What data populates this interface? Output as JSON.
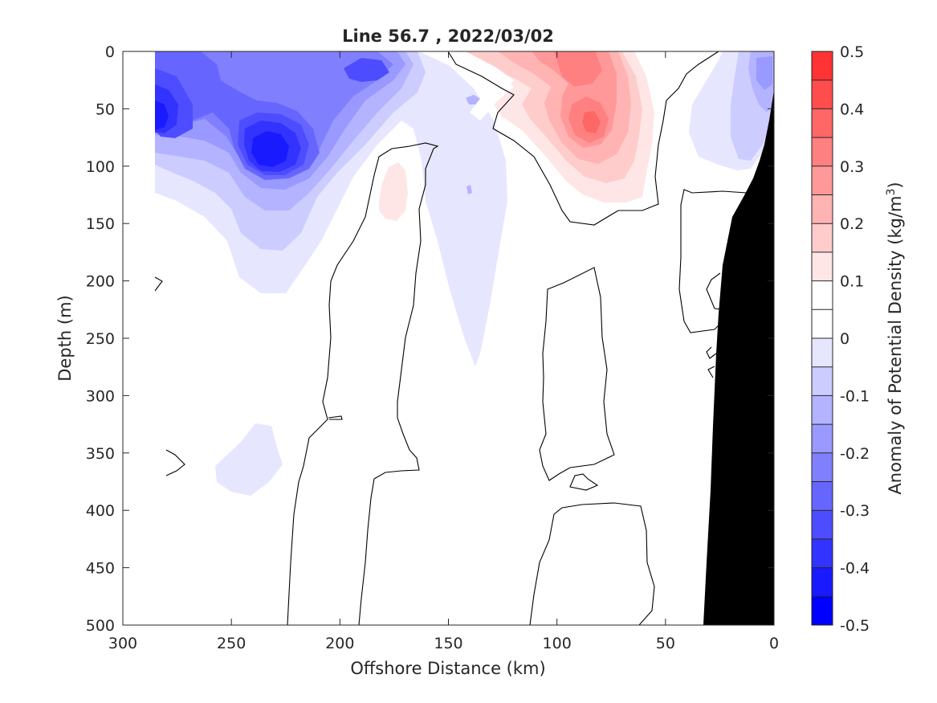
{
  "chart_data": {
    "type": "heatmap",
    "subtype": "filled-contour section",
    "title": "Line 56.7 , 2022/03/02",
    "xlabel": "Offshore Distance (km)",
    "ylabel": "Depth (m)",
    "colorbar_label": "Anomaly of Potential Density (kg/m",
    "colorbar_label_superscript": "3",
    "colorbar_label_suffix": ")",
    "x_reversed": true,
    "y_reversed": true,
    "xlim": [
      0,
      300
    ],
    "ylim": [
      0,
      500
    ],
    "x_ticks": [
      300,
      250,
      200,
      150,
      100,
      50,
      0
    ],
    "y_ticks": [
      0,
      50,
      100,
      150,
      200,
      250,
      300,
      350,
      400,
      450,
      500
    ],
    "clim": [
      -0.5,
      0.5
    ],
    "colorbar_ticks": [
      0.5,
      0.4,
      0.3,
      0.2,
      0.1,
      0,
      -0.1,
      -0.2,
      -0.3,
      -0.4,
      -0.5
    ],
    "levels": [
      -0.5,
      -0.45,
      -0.4,
      -0.35,
      -0.3,
      -0.25,
      -0.2,
      -0.15,
      -0.1,
      -0.05,
      0,
      0.05,
      0.1,
      0.15,
      0.2,
      0.25,
      0.3,
      0.35,
      0.4,
      0.45,
      0.5
    ],
    "level_colors": [
      "#0000ff",
      "#1a1aff",
      "#3333ff",
      "#4d4dff",
      "#6666ff",
      "#8080ff",
      "#9999ff",
      "#b3b3ff",
      "#ccccff",
      "#e6e6ff",
      "#ffffff",
      "#ffffff",
      "#ffe6e6",
      "#ffcccc",
      "#ffb3b3",
      "#ff9999",
      "#ff8080",
      "#ff6666",
      "#ff4d4d",
      "#ff3333",
      "#ff1a1a"
    ],
    "bathymetry_color": "#000000",
    "grid": false,
    "features": [
      {
        "name": "offshore-negative-core",
        "x": 230,
        "depth": 90,
        "min_value": -0.45
      },
      {
        "name": "far-offshore-negative-core",
        "x": 282,
        "depth": 55,
        "min_value": -0.4
      },
      {
        "name": "nearshore-positive-core-upper",
        "x": 88,
        "depth": 10,
        "max_value": 0.25
      },
      {
        "name": "nearshore-positive-core-lower",
        "x": 85,
        "depth": 62,
        "max_value": 0.3
      },
      {
        "name": "weak-positive-patch",
        "x": 175,
        "depth": 115,
        "max_value": 0.1
      },
      {
        "name": "coastal-negative-patch",
        "x": 12,
        "depth": 30,
        "min_value": -0.2
      }
    ],
    "bathymetry": {
      "x": [
        0,
        0,
        5,
        10,
        18,
        25,
        28,
        29,
        30,
        31,
        32,
        33,
        0
      ],
      "depth": [
        500,
        33,
        80,
        110,
        130,
        148,
        190,
        250,
        300,
        350,
        420,
        500,
        500
      ]
    }
  }
}
